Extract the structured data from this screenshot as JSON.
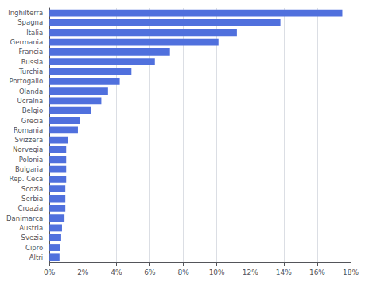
{
  "chart_data": {
    "type": "bar",
    "orientation": "horizontal",
    "categories": [
      "Inghilterra",
      "Spagna",
      "Italia",
      "Germania",
      "Francia",
      "Russia",
      "Turchia",
      "Portogallo",
      "Olanda",
      "Ucraina",
      "Belgio",
      "Grecia",
      "Romania",
      "Svizzera",
      "Norvegia",
      "Polonia",
      "Bulgaria",
      "Rep. Ceca",
      "Scozia",
      "Serbia",
      "Croazia",
      "Danimarca",
      "Austria",
      "Svezia",
      "Cipro",
      "Altri"
    ],
    "values": [
      17.5,
      13.8,
      11.2,
      10.1,
      7.2,
      6.3,
      4.9,
      4.2,
      3.5,
      3.1,
      2.5,
      1.8,
      1.7,
      1.1,
      1.0,
      1.0,
      1.0,
      1.0,
      0.95,
      0.95,
      0.95,
      0.9,
      0.75,
      0.7,
      0.65,
      0.6
    ],
    "xlim": [
      0,
      18
    ],
    "xticks": [
      {
        "value": 0,
        "label": "0%"
      },
      {
        "value": 2,
        "label": "2%"
      },
      {
        "value": 4,
        "label": "4%"
      },
      {
        "value": 6,
        "label": "6%"
      },
      {
        "value": 8,
        "label": "8%"
      },
      {
        "value": 10,
        "label": "10%"
      },
      {
        "value": 12,
        "label": "12%"
      },
      {
        "value": 14,
        "label": "14%"
      },
      {
        "value": 16,
        "label": "16%"
      },
      {
        "value": 18,
        "label": "18%"
      }
    ],
    "grid": true
  }
}
